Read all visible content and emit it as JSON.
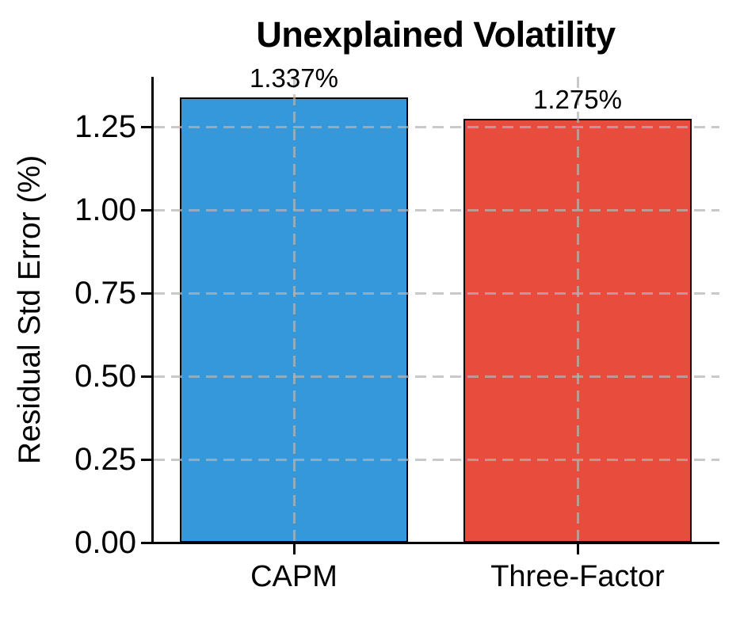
{
  "chart_data": {
    "type": "bar",
    "title": "Unexplained Volatility",
    "xlabel": "",
    "ylabel": "Residual Std Error (%)",
    "categories": [
      "CAPM",
      "Three-Factor"
    ],
    "values": [
      1.337,
      1.275
    ],
    "bar_labels": [
      "1.337%",
      "1.275%"
    ],
    "bar_colors": [
      "#3498db",
      "#e74c3c"
    ],
    "bar_edge_color": "#000000",
    "ylim": [
      0,
      1.4
    ],
    "ytick_values": [
      0,
      0.25,
      0.5,
      0.75,
      1.0,
      1.25
    ],
    "yticks": [
      "0.00",
      "0.25",
      "0.50",
      "0.75",
      "1.00",
      "1.25"
    ],
    "grid": {
      "on": true,
      "style": "dashed",
      "color": "#d3d3d3",
      "axes": "both",
      "drawn_over_bars": true
    },
    "legend": "none",
    "background": "#ffffff",
    "text_color": "#000000"
  }
}
